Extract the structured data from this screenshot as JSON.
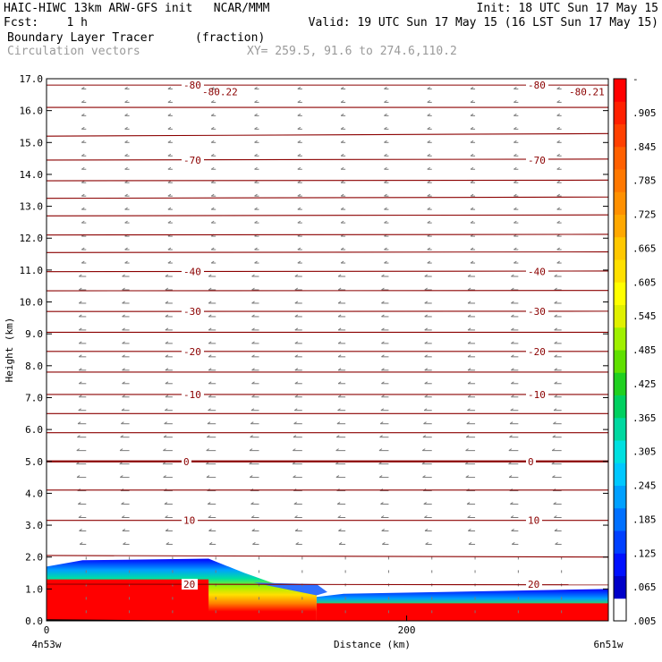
{
  "header": {
    "line1_left": "HAIC-HIWC 13km ARW-GFS init   NCAR/MMM",
    "line1_right": "Init: 18 UTC Sun 17 May 15",
    "line2_left": "Fcst:    1 h",
    "line2_right": "Valid: 19 UTC Sun 17 May 15 (16 LST Sun 17 May 15)",
    "field": "Boundary Layer Tracer",
    "field_units": "(fraction)",
    "vectors": "Circulation vectors",
    "xy": "XY= 259.5, 91.6 to 274.6,110.2"
  },
  "colors": {
    "contour": "#8b0000",
    "vector": "#7a7a7a",
    "colorbar": [
      "#ffffff",
      "#0000c8",
      "#0010ff",
      "#0040ff",
      "#0070ff",
      "#00a0ff",
      "#00c8ff",
      "#00e0e0",
      "#00d8a0",
      "#00d060",
      "#20d020",
      "#60e000",
      "#a0f000",
      "#e0f000",
      "#ffff00",
      "#ffe000",
      "#ffc800",
      "#ffa800",
      "#ff9000",
      "#ff7800",
      "#ff6000",
      "#ff4000",
      "#ff2000",
      "#ff0000"
    ]
  },
  "chart_data": {
    "type": "contour",
    "xlabel": "Distance (km)",
    "ylabel": "Height (km)",
    "xlim": [
      0,
      312
    ],
    "ylim": [
      0,
      17
    ],
    "x_ticks": [
      {
        "value": 0,
        "label": "0"
      },
      {
        "value": 200,
        "label": "200"
      }
    ],
    "x_end_labels": {
      "left": "4n53w",
      "right": "6n51w"
    },
    "y_ticks": [
      0,
      1,
      2,
      3,
      4,
      5,
      6,
      7,
      8,
      9,
      10,
      11,
      12,
      13,
      14,
      15,
      16,
      17
    ],
    "y_tick_labels": [
      "0.0",
      "1.0",
      "2.0",
      "3.0",
      "4.0",
      "5.0",
      "6.0",
      "7.0",
      "8.0",
      "9.0",
      "10.0",
      "11.0",
      "12.0",
      "13.0",
      "14.0",
      "15.0",
      "16.0",
      "17.0"
    ],
    "colorbar_labels": [
      "-",
      ".905",
      ".845",
      ".785",
      ".725",
      ".665",
      ".605",
      ".545",
      ".485",
      ".425",
      ".365",
      ".305",
      ".245",
      ".185",
      ".125",
      ".065",
      ".005"
    ],
    "temperature_contours": [
      {
        "height": 16.8,
        "slope": 0.0,
        "label": "-80"
      },
      {
        "height": 16.1,
        "slope": 0.0,
        "label": ""
      },
      {
        "height": 15.2,
        "slope": 0.08,
        "label": ""
      },
      {
        "height": 14.45,
        "slope": 0.03,
        "label": "-70"
      },
      {
        "height": 13.8,
        "slope": 0.02,
        "label": ""
      },
      {
        "height": 13.25,
        "slope": 0.04,
        "label": ""
      },
      {
        "height": 12.7,
        "slope": 0.03,
        "label": ""
      },
      {
        "height": 12.1,
        "slope": 0.02,
        "label": ""
      },
      {
        "height": 11.55,
        "slope": 0.02,
        "label": ""
      },
      {
        "height": 10.95,
        "slope": 0.02,
        "label": "-40"
      },
      {
        "height": 10.35,
        "slope": 0.01,
        "label": ""
      },
      {
        "height": 9.7,
        "slope": 0.01,
        "label": "-30"
      },
      {
        "height": 9.05,
        "slope": 0.0,
        "label": ""
      },
      {
        "height": 8.45,
        "slope": 0.0,
        "label": "-20"
      },
      {
        "height": 7.8,
        "slope": 0.0,
        "label": ""
      },
      {
        "height": 7.1,
        "slope": 0.0,
        "label": "-10"
      },
      {
        "height": 6.5,
        "slope": 0.0,
        "label": ""
      },
      {
        "height": 5.9,
        "slope": 0.0,
        "label": ""
      },
      {
        "height": 5.0,
        "slope": 0.0,
        "label": "0",
        "bold": true
      },
      {
        "height": 4.1,
        "slope": 0.0,
        "label": ""
      },
      {
        "height": 3.15,
        "slope": 0.0,
        "label": "10"
      },
      {
        "height": 2.05,
        "slope": -0.05,
        "label": ""
      },
      {
        "height": 1.15,
        "slope": -0.02,
        "label": "20"
      }
    ],
    "contour_extra_labels": [
      "-80.22",
      "-80.21"
    ],
    "tracer_layer": {
      "description_levels": [
        "full",
        "gradient"
      ],
      "left_top_km": 1.9,
      "right_top_km": 1.0,
      "transition_km": [
        90,
        150
      ],
      "max_value": 1.0
    }
  }
}
